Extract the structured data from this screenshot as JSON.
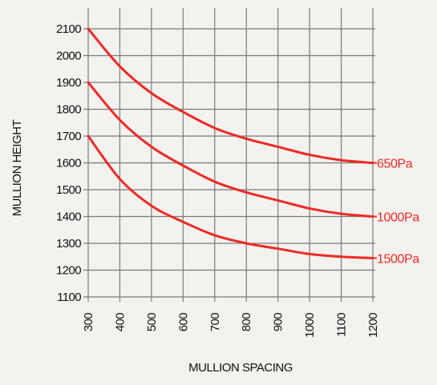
{
  "chart_data": {
    "type": "line",
    "title": "",
    "xlabel": "MULLION SPACING",
    "ylabel": "MULLION HEIGHT",
    "xlim": [
      300,
      1200
    ],
    "ylim": [
      1100,
      2100
    ],
    "grid": true,
    "x_ticks": [
      "300",
      "400",
      "500",
      "600",
      "700",
      "800",
      "900",
      "1000",
      "1100",
      "1200"
    ],
    "y_ticks": [
      "2100",
      "2000",
      "1900",
      "1800",
      "1700",
      "1600",
      "1500",
      "1400",
      "1300",
      "1200",
      "1100"
    ],
    "series_color": "#ee2a24",
    "series": [
      {
        "name": "650Pa",
        "x": [
          300,
          400,
          500,
          600,
          700,
          800,
          900,
          1000,
          1100,
          1200
        ],
        "values": [
          2100,
          1960,
          1860,
          1790,
          1730,
          1690,
          1660,
          1630,
          1610,
          1600
        ]
      },
      {
        "name": "1000Pa",
        "x": [
          300,
          400,
          500,
          600,
          700,
          800,
          900,
          1000,
          1100,
          1200
        ],
        "values": [
          1900,
          1760,
          1660,
          1590,
          1530,
          1490,
          1460,
          1430,
          1410,
          1400
        ]
      },
      {
        "name": "1500Pa",
        "x": [
          300,
          400,
          500,
          600,
          700,
          800,
          900,
          1000,
          1100,
          1200
        ],
        "values": [
          1700,
          1540,
          1440,
          1380,
          1330,
          1300,
          1280,
          1260,
          1250,
          1245
        ]
      }
    ]
  }
}
